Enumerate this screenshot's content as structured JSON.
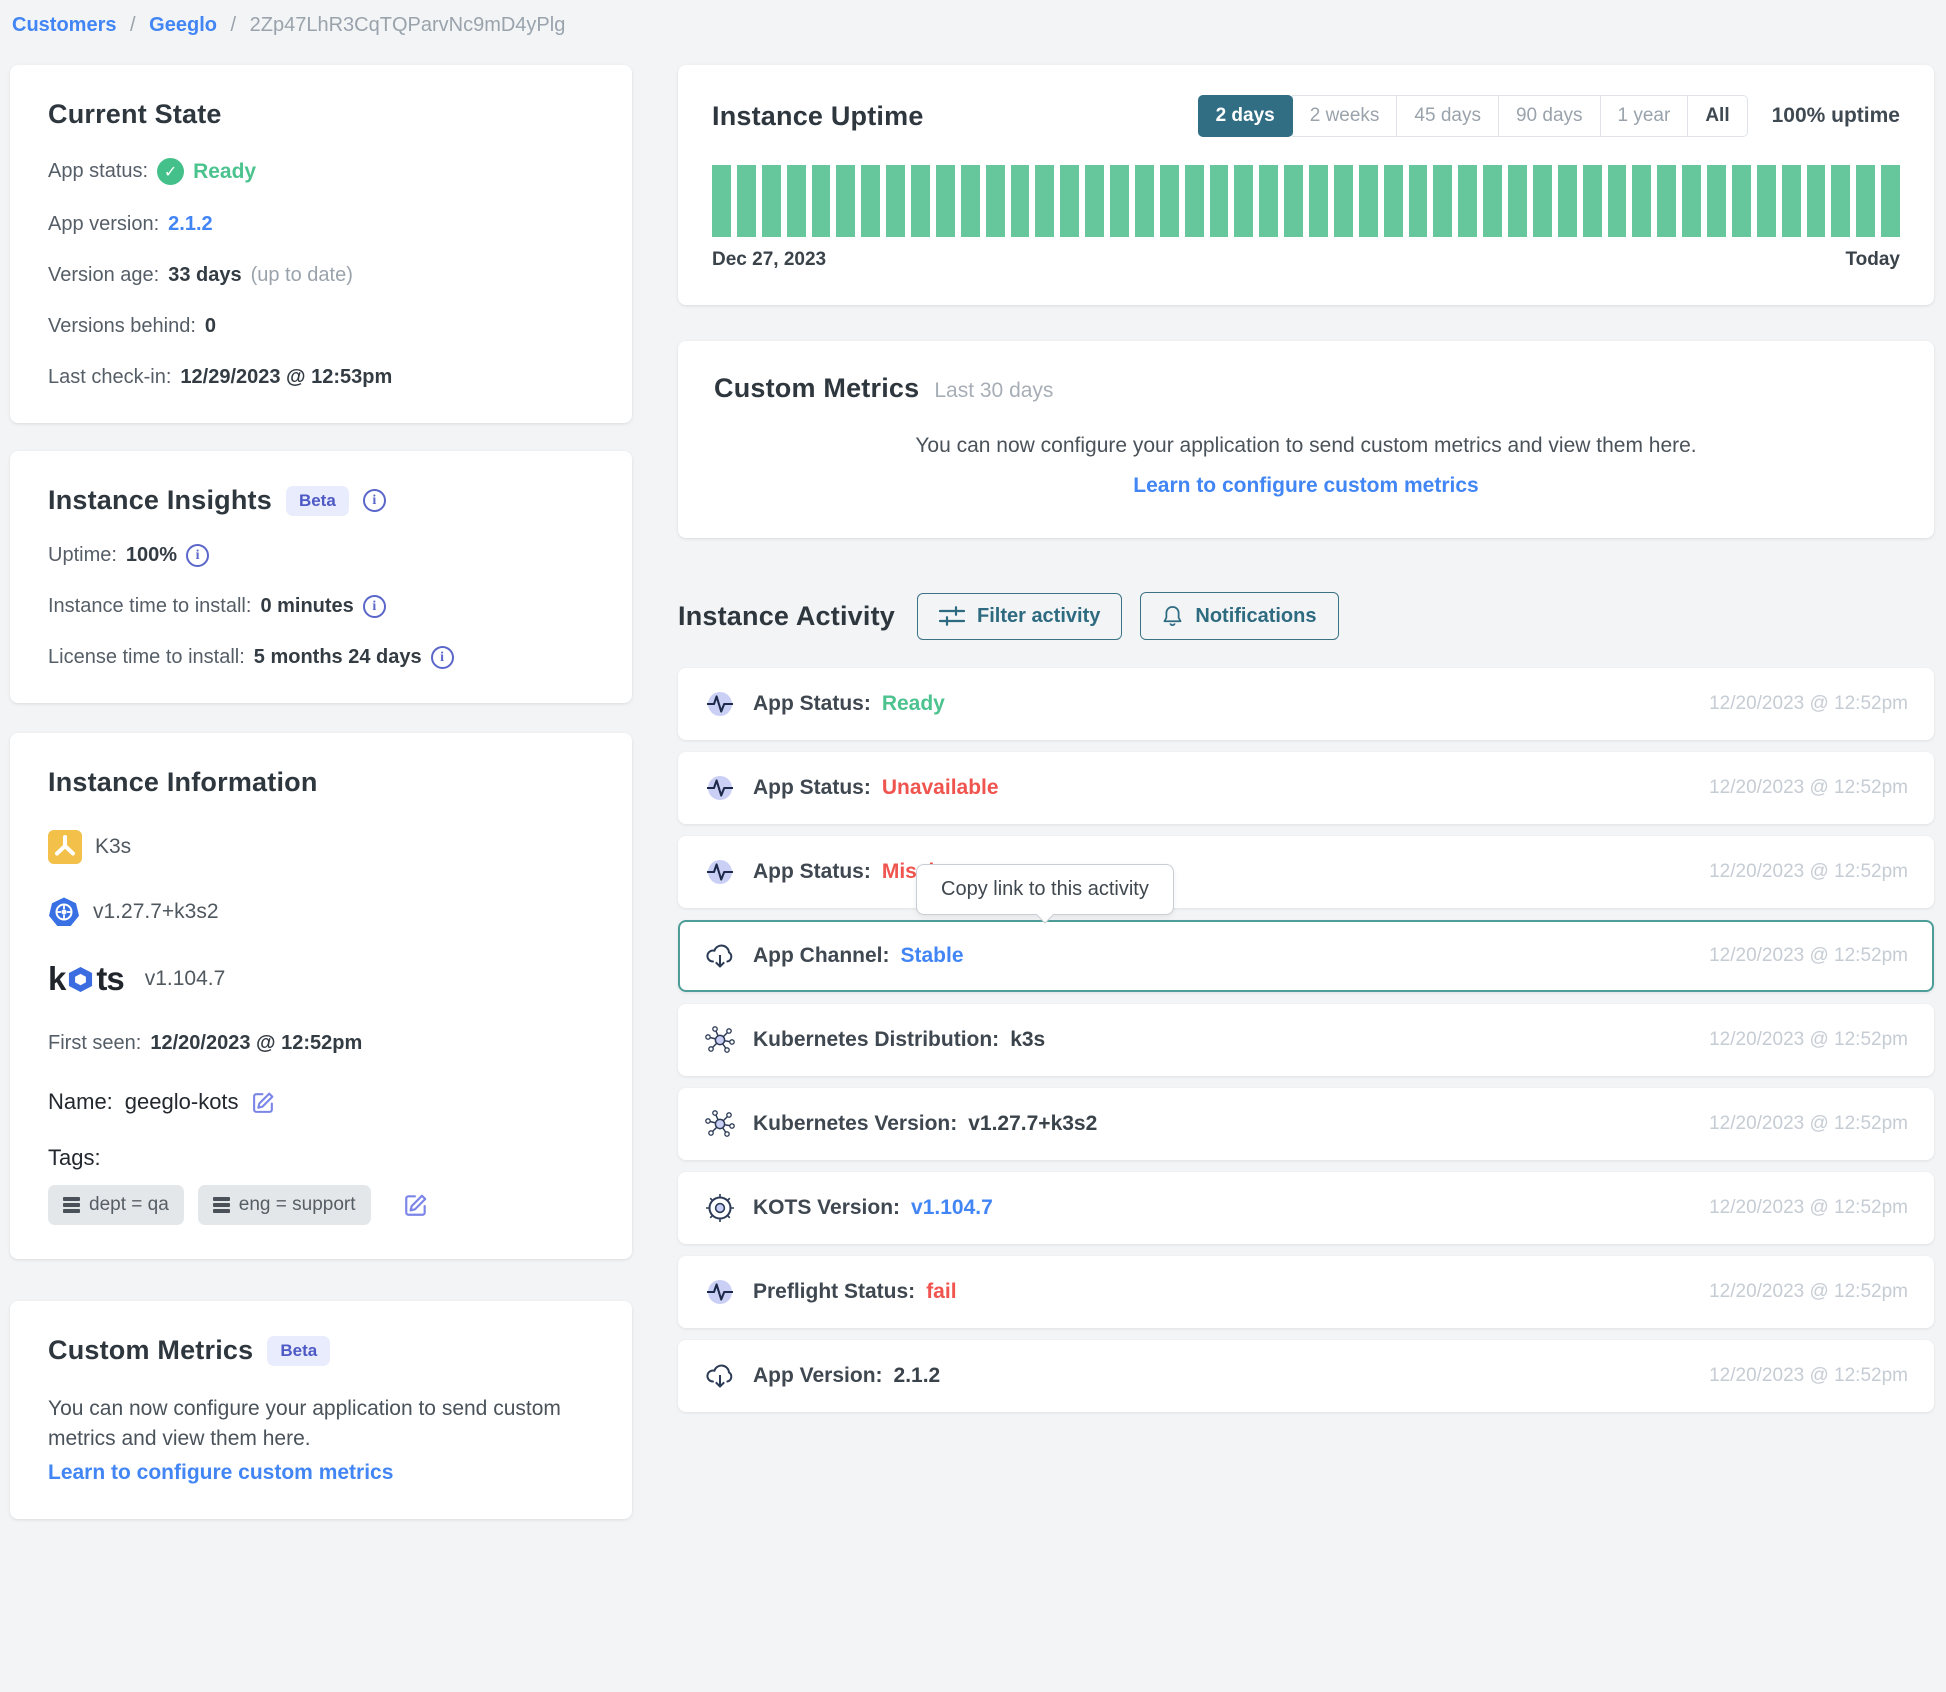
{
  "breadcrumb": {
    "customers": "Customers",
    "customer": "Geeglo",
    "instance_id": "2Zp47LhR3CqTQParvNc9mD4yPlg",
    "separator": "/"
  },
  "current_state": {
    "title": "Current State",
    "app_status_label": "App status:",
    "app_status_value": "Ready",
    "app_version_label": "App version:",
    "app_version_value": "2.1.2",
    "version_age_label": "Version age:",
    "version_age_value": "33 days",
    "version_age_note": "(up to date)",
    "versions_behind_label": "Versions behind:",
    "versions_behind_value": "0",
    "last_checkin_label": "Last check-in:",
    "last_checkin_value": "12/29/2023 @ 12:53pm"
  },
  "instance_insights": {
    "title": "Instance Insights",
    "beta_badge": "Beta",
    "uptime_label": "Uptime:",
    "uptime_value": "100%",
    "instance_tti_label": "Instance time to install:",
    "instance_tti_value": "0 minutes",
    "license_tti_label": "License time to install:",
    "license_tti_value": "5 months 24 days"
  },
  "instance_information": {
    "title": "Instance Information",
    "distribution": "K3s",
    "kubernetes_version": "v1.27.7+k3s2",
    "kots_logo_prefix": "k",
    "kots_logo_suffix": "ts",
    "kots_version": "v1.104.7",
    "first_seen_label": "First seen:",
    "first_seen_value": "12/20/2023 @ 12:52pm",
    "name_label": "Name:",
    "name_value": "geeglo-kots",
    "tags_label": "Tags:",
    "tags": [
      "dept = qa",
      "eng = support"
    ]
  },
  "custom_metrics_card": {
    "title": "Custom Metrics",
    "beta_badge": "Beta",
    "body": "You can now configure your application to send custom metrics and view them here.",
    "link": "Learn to configure custom metrics"
  },
  "uptime_card": {
    "title": "Instance Uptime",
    "ranges": [
      "2 days",
      "2 weeks",
      "45 days",
      "90 days",
      "1 year",
      "All"
    ],
    "active_range": "2 days",
    "uptime_text": "100% uptime",
    "start_label": "Dec 27, 2023",
    "end_label": "Today",
    "bars": 48,
    "bar_color": "#65c79b",
    "uptime_percent": 100
  },
  "custom_metrics_panel": {
    "title": "Custom Metrics",
    "subtitle": "Last 30 days",
    "body": "You can now configure your application to send custom metrics and view them here.",
    "link": "Learn to configure custom metrics"
  },
  "activity": {
    "title": "Instance Activity",
    "filter_button": "Filter activity",
    "notifications_button": "Notifications",
    "tooltip": "Copy link to this activity",
    "rows": [
      {
        "icon": "pulse",
        "label": "App Status:",
        "value": "Ready",
        "kind": "success",
        "timestamp": "12/20/2023 @ 12:52pm"
      },
      {
        "icon": "pulse",
        "label": "App Status:",
        "value": "Unavailable",
        "kind": "danger",
        "timestamp": "12/20/2023 @ 12:52pm"
      },
      {
        "icon": "pulse",
        "label": "App Status:",
        "value": "Missing",
        "kind": "danger",
        "timestamp": "12/20/2023 @ 12:52pm"
      },
      {
        "icon": "cloud-download",
        "label": "App Channel:",
        "value": "Stable",
        "kind": "link",
        "timestamp": "12/20/2023 @ 12:52pm",
        "selected": true
      },
      {
        "icon": "kubernetes-nodes",
        "label": "Kubernetes Distribution:",
        "value": "k3s",
        "kind": "dark",
        "timestamp": "12/20/2023 @ 12:52pm"
      },
      {
        "icon": "kubernetes-nodes",
        "label": "Kubernetes Version:",
        "value": "v1.27.7+k3s2",
        "kind": "dark",
        "timestamp": "12/20/2023 @ 12:52pm"
      },
      {
        "icon": "helm-wheel",
        "label": "KOTS Version:",
        "value": "v1.104.7",
        "kind": "link",
        "timestamp": "12/20/2023 @ 12:52pm"
      },
      {
        "icon": "pulse",
        "label": "Preflight Status:",
        "value": "fail",
        "kind": "danger",
        "timestamp": "12/20/2023 @ 12:52pm"
      },
      {
        "icon": "cloud-download",
        "label": "App Version:",
        "value": "2.1.2",
        "kind": "dark",
        "timestamp": "12/20/2023 @ 12:52pm"
      }
    ]
  },
  "colors": {
    "accent_teal": "#316e84",
    "selected_row_border": "#4e9d99",
    "success_green": "#4cc38f",
    "danger_red": "#f0544f",
    "link_blue": "#4285f4",
    "indigo": "#5a66c9",
    "bar_green": "#65c79b",
    "page_bg": "#f2f4f6"
  }
}
